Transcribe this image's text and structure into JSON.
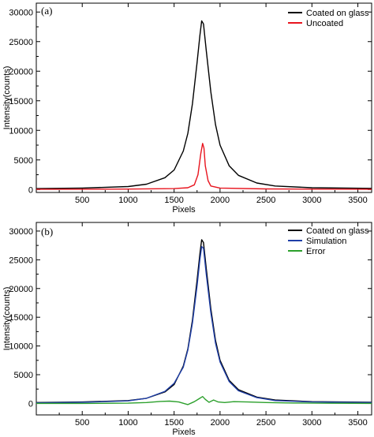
{
  "chart_data": [
    {
      "type": "line",
      "panel_label": "(a)",
      "xlabel": "Pixels",
      "ylabel": "Intensity(counts)",
      "xlim": [
        0,
        3650
      ],
      "ylim": [
        -500,
        31500
      ],
      "xticks": [
        500,
        1000,
        1500,
        2000,
        2500,
        3000,
        3500
      ],
      "yticks": [
        0,
        5000,
        10000,
        15000,
        20000,
        25000,
        30000
      ],
      "legend_position": "top-right",
      "series": [
        {
          "name": "Coated on glass",
          "color": "#000000",
          "x": [
            0,
            500,
            1000,
            1200,
            1400,
            1500,
            1600,
            1650,
            1700,
            1750,
            1780,
            1800,
            1820,
            1850,
            1900,
            1950,
            2000,
            2100,
            2200,
            2400,
            2600,
            3000,
            3650
          ],
          "y": [
            150,
            250,
            500,
            900,
            2000,
            3300,
            6500,
            9500,
            14500,
            21500,
            26000,
            28500,
            28000,
            23500,
            16500,
            11000,
            7500,
            4000,
            2400,
            1100,
            600,
            300,
            200
          ]
        },
        {
          "name": "Uncoated",
          "color": "#e8141e",
          "x": [
            0,
            500,
            1000,
            1500,
            1650,
            1720,
            1760,
            1790,
            1810,
            1825,
            1840,
            1870,
            1900,
            2000,
            2500,
            3000,
            3650
          ],
          "y": [
            50,
            50,
            80,
            150,
            300,
            800,
            2500,
            6000,
            7800,
            7000,
            4000,
            1500,
            600,
            250,
            100,
            60,
            50
          ]
        }
      ]
    },
    {
      "type": "line",
      "panel_label": "(b)",
      "xlabel": "Pixels",
      "ylabel": "Intensity(counts)",
      "xlim": [
        0,
        3650
      ],
      "ylim": [
        -2000,
        31500
      ],
      "xticks": [
        500,
        1000,
        1500,
        2000,
        2500,
        3000,
        3500
      ],
      "yticks": [
        0,
        5000,
        10000,
        15000,
        20000,
        25000,
        30000
      ],
      "legend_position": "top-right",
      "series": [
        {
          "name": "Coated on glass",
          "color": "#000000",
          "x": [
            0,
            500,
            1000,
            1200,
            1400,
            1500,
            1600,
            1650,
            1700,
            1750,
            1780,
            1800,
            1820,
            1850,
            1900,
            1950,
            2000,
            2100,
            2200,
            2400,
            2600,
            3000,
            3650
          ],
          "y": [
            150,
            250,
            500,
            900,
            2000,
            3300,
            6500,
            9500,
            14500,
            21500,
            26000,
            28500,
            28000,
            23500,
            16500,
            11000,
            7500,
            4000,
            2400,
            1100,
            600,
            300,
            200
          ]
        },
        {
          "name": "Simulation",
          "color": "#1f3fa8",
          "x": [
            0,
            500,
            1000,
            1200,
            1400,
            1500,
            1600,
            1650,
            1700,
            1750,
            1780,
            1800,
            1820,
            1850,
            1900,
            1950,
            2000,
            2100,
            2200,
            2400,
            2600,
            3000,
            3650
          ],
          "y": [
            100,
            200,
            450,
            900,
            2100,
            3500,
            6300,
            9300,
            14000,
            20500,
            25000,
            27300,
            27000,
            22500,
            15800,
            10500,
            7200,
            3800,
            2200,
            1000,
            500,
            250,
            150
          ]
        },
        {
          "name": "Error",
          "color": "#2ca02c",
          "x": [
            0,
            500,
            1000,
            1200,
            1350,
            1450,
            1550,
            1650,
            1720,
            1780,
            1810,
            1840,
            1880,
            1930,
            1980,
            2050,
            2150,
            2300,
            2500,
            2800,
            3200,
            3650
          ],
          "y": [
            0,
            0,
            50,
            150,
            350,
            400,
            250,
            -200,
            300,
            900,
            1200,
            700,
            200,
            600,
            250,
            150,
            300,
            250,
            150,
            80,
            30,
            0
          ]
        }
      ]
    }
  ]
}
